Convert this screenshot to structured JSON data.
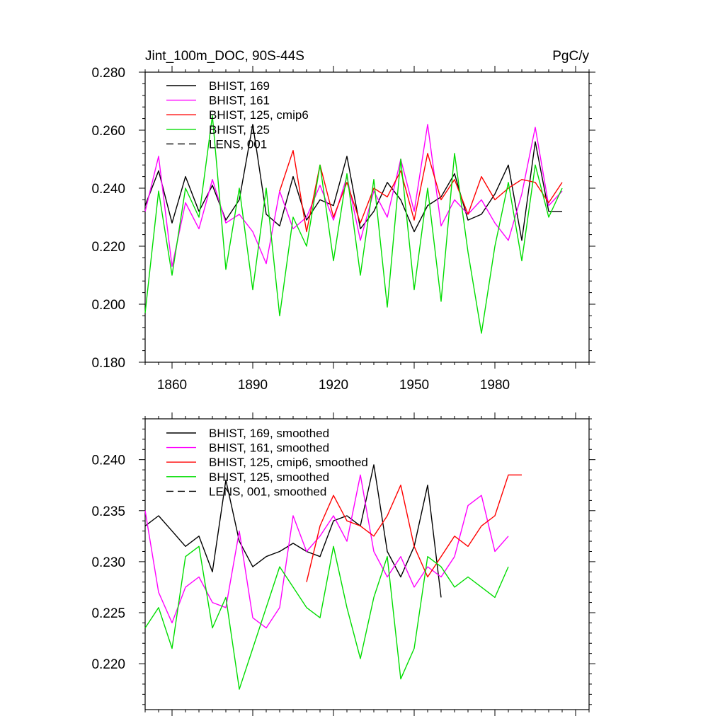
{
  "chart_data": [
    {
      "type": "line",
      "title": "Jint_100m_DOC, 90S-44S",
      "units": "PgC/y",
      "xlim": [
        1850,
        2015
      ],
      "ylim": [
        0.18,
        0.28
      ],
      "x_ticks": [
        1860,
        1890,
        1920,
        1950,
        1980
      ],
      "x_tick_labels": [
        "1860",
        "1890",
        "1920",
        "1950",
        "1980"
      ],
      "y_ticks": [
        0.18,
        0.2,
        0.22,
        0.24,
        0.26,
        0.28
      ],
      "y_tick_labels": [
        "0.180",
        "0.200",
        "0.220",
        "0.240",
        "0.260",
        "0.280"
      ],
      "legend": [
        {
          "label": "BHIST, 169",
          "color": "#000000",
          "dash": false
        },
        {
          "label": "BHIST, 161",
          "color": "#ff00ff",
          "dash": false
        },
        {
          "label": "BHIST, 125, cmip6",
          "color": "#ff0000",
          "dash": false
        },
        {
          "label": "BHIST, 125",
          "color": "#00dd00",
          "dash": false
        },
        {
          "label": "LENS, 001",
          "color": "#000000",
          "dash": true
        }
      ],
      "series": [
        {
          "name": "BHIST, 169",
          "color": "#000000",
          "x_start": 1850,
          "x_step": 5,
          "values": [
            0.234,
            0.246,
            0.228,
            0.244,
            0.232,
            0.241,
            0.229,
            0.236,
            0.262,
            0.231,
            0.227,
            0.244,
            0.229,
            0.236,
            0.234,
            0.251,
            0.226,
            0.232,
            0.242,
            0.236,
            0.225,
            0.234,
            0.237,
            0.245,
            0.229,
            0.231,
            0.238,
            0.248,
            0.222,
            0.256,
            0.232,
            0.232
          ]
        },
        {
          "name": "BHIST, 161",
          "color": "#ff00ff",
          "x_start": 1850,
          "x_step": 5,
          "values": [
            0.232,
            0.251,
            0.213,
            0.235,
            0.226,
            0.243,
            0.228,
            0.231,
            0.225,
            0.214,
            0.239,
            0.226,
            0.23,
            0.241,
            0.229,
            0.244,
            0.222,
            0.239,
            0.23,
            0.25,
            0.232,
            0.262,
            0.227,
            0.236,
            0.231,
            0.236,
            0.228,
            0.222,
            0.238,
            0.261,
            0.234,
            0.239
          ]
        },
        {
          "name": "BHIST, 125, cmip6",
          "color": "#ff0000",
          "x_start": 1900,
          "x_step": 5,
          "values": [
            0.239,
            0.253,
            0.225,
            0.248,
            0.23,
            0.242,
            0.228,
            0.24,
            0.237,
            0.246,
            0.229,
            0.252,
            0.236,
            0.243,
            0.231,
            0.244,
            0.236,
            0.24,
            0.243,
            0.242,
            0.235,
            0.242
          ]
        },
        {
          "name": "BHIST, 125",
          "color": "#00dd00",
          "x_start": 1850,
          "x_step": 5,
          "values": [
            0.197,
            0.239,
            0.21,
            0.24,
            0.23,
            0.265,
            0.212,
            0.24,
            0.205,
            0.24,
            0.196,
            0.23,
            0.22,
            0.248,
            0.215,
            0.245,
            0.21,
            0.243,
            0.199,
            0.25,
            0.205,
            0.24,
            0.201,
            0.252,
            0.218,
            0.19,
            0.22,
            0.242,
            0.215,
            0.248,
            0.23,
            0.24
          ]
        },
        {
          "name": "LENS, 001",
          "color": "#000000",
          "dash": true,
          "values": []
        }
      ]
    },
    {
      "type": "line",
      "title": "",
      "units": "",
      "xlim": [
        1850,
        2015
      ],
      "ylim": [
        0.2155,
        0.244
      ],
      "x_ticks": [
        1860,
        1890,
        1920,
        1950,
        1980
      ],
      "y_ticks": [
        0.22,
        0.225,
        0.23,
        0.235,
        0.24
      ],
      "y_tick_labels": [
        "0.220",
        "0.225",
        "0.230",
        "0.235",
        "0.240"
      ],
      "legend": [
        {
          "label": "BHIST, 169, smoothed",
          "color": "#000000",
          "dash": false
        },
        {
          "label": "BHIST, 161, smoothed",
          "color": "#ff00ff",
          "dash": false
        },
        {
          "label": "BHIST, 125, cmip6, smoothed",
          "color": "#ff0000",
          "dash": false
        },
        {
          "label": "BHIST, 125, smoothed",
          "color": "#00dd00",
          "dash": false
        },
        {
          "label": "LENS, 001, smoothed",
          "color": "#000000",
          "dash": true
        }
      ],
      "series": [
        {
          "name": "BHIST, 169, smoothed",
          "color": "#000000",
          "x_start": 1850,
          "x_step": 5,
          "values": [
            0.2335,
            0.2345,
            0.233,
            0.2315,
            0.2325,
            0.229,
            0.238,
            0.232,
            0.2295,
            0.2305,
            0.231,
            0.2318,
            0.231,
            0.2305,
            0.234,
            0.2345,
            0.2335,
            0.2395,
            0.231,
            0.2285,
            0.2315,
            0.2375,
            0.2265
          ]
        },
        {
          "name": "BHIST, 161, smoothed",
          "color": "#ff00ff",
          "x_start": 1850,
          "x_step": 5,
          "values": [
            0.235,
            0.227,
            0.224,
            0.2275,
            0.2285,
            0.226,
            0.2255,
            0.233,
            0.2245,
            0.2235,
            0.2255,
            0.2345,
            0.231,
            0.2325,
            0.2345,
            0.232,
            0.2385,
            0.231,
            0.2285,
            0.2305,
            0.2275,
            0.2295,
            0.2285,
            0.2305,
            0.2355,
            0.2365,
            0.231,
            0.2325
          ]
        },
        {
          "name": "BHIST, 125, cmip6, smoothed",
          "color": "#ff0000",
          "x_start": 1910,
          "x_step": 5,
          "values": [
            0.228,
            0.2335,
            0.2365,
            0.234,
            0.2335,
            0.2325,
            0.2345,
            0.2375,
            0.2315,
            0.2285,
            0.2305,
            0.2325,
            0.2315,
            0.2335,
            0.2345,
            0.2385,
            0.2385
          ]
        },
        {
          "name": "BHIST, 125, smoothed",
          "color": "#00dd00",
          "x_start": 1850,
          "x_step": 5,
          "values": [
            0.2235,
            0.2255,
            0.2215,
            0.2305,
            0.2315,
            0.2235,
            0.2265,
            0.2175,
            0.2215,
            0.2255,
            0.2295,
            0.2275,
            0.2255,
            0.2245,
            0.2315,
            0.2255,
            0.2205,
            0.2265,
            0.2305,
            0.2185,
            0.2215,
            0.2305,
            0.2295,
            0.2275,
            0.2285,
            0.2275,
            0.2265,
            0.2295
          ]
        },
        {
          "name": "LENS, 001, smoothed",
          "color": "#000000",
          "dash": true,
          "values": []
        }
      ]
    }
  ]
}
